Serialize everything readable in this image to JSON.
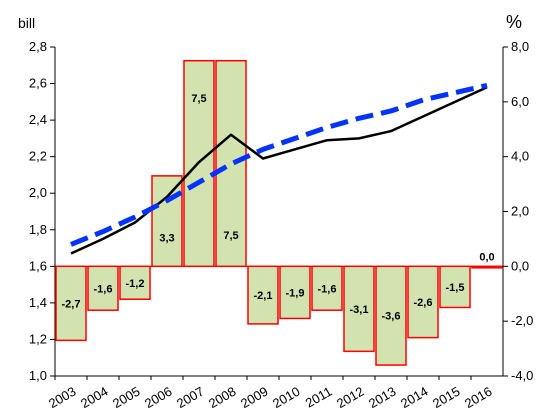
{
  "chart_data": {
    "type": "bar",
    "title": "",
    "left_axis_unit": "bill",
    "right_axis_unit": "%",
    "categories": [
      "2003",
      "2004",
      "2005",
      "2006",
      "2007",
      "2008",
      "2009",
      "2010",
      "2011",
      "2012",
      "2013",
      "2014",
      "2015",
      "2016"
    ],
    "bars": {
      "axis": "right",
      "values": [
        -2.7,
        -1.6,
        -1.2,
        3.3,
        7.5,
        7.5,
        -2.1,
        -1.9,
        -1.6,
        -3.1,
        -3.6,
        -2.6,
        -1.5,
        0.0
      ],
      "labels": [
        "-2,7",
        "-1,6",
        "-1,2",
        "3,3",
        "7,5",
        "7,5",
        "-2,1",
        "-1,9",
        "-1,6",
        "-3,1",
        "-3,6",
        "-2,6",
        "-1,5",
        "0,0"
      ],
      "fill": "#d3e3b0",
      "stroke": "#ff0000"
    },
    "series": [
      {
        "axis": "left",
        "style": "solid",
        "color": "#000000",
        "values": [
          1.67,
          1.75,
          1.84,
          1.98,
          2.17,
          2.32,
          2.19,
          2.24,
          2.29,
          2.3,
          2.34,
          2.42,
          2.5,
          2.58
        ]
      },
      {
        "axis": "left",
        "style": "dashed",
        "color": "#0033ff",
        "values": [
          1.72,
          1.79,
          1.87,
          1.96,
          2.06,
          2.16,
          2.24,
          2.3,
          2.36,
          2.41,
          2.45,
          2.51,
          2.55,
          2.59
        ]
      }
    ],
    "left_axis": {
      "min": 1.0,
      "max": 2.8,
      "ticks": [
        "1,0",
        "1,2",
        "1,4",
        "1,6",
        "1,8",
        "2,0",
        "2,2",
        "2,4",
        "2,6",
        "2,8"
      ]
    },
    "right_axis": {
      "min": -4.0,
      "max": 8.0,
      "ticks": [
        "-4,0",
        "-2,0",
        "0,0",
        "2,0",
        "4,0",
        "6,0",
        "8,0"
      ]
    },
    "grid": false,
    "legend": "none"
  }
}
